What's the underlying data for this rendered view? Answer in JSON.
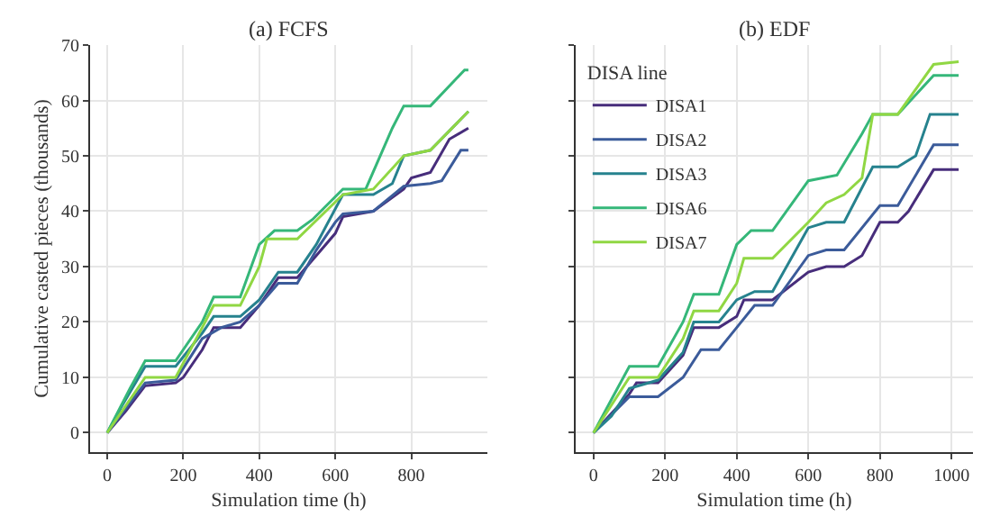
{
  "chart_data": [
    {
      "type": "line",
      "title": "(a) FCFS",
      "xlabel": "Simulation time (h)",
      "ylabel": "Cumulative casted pieces (thousands)",
      "xlim": [
        -45,
        1000
      ],
      "xticks": [
        0,
        200,
        400,
        600,
        800
      ],
      "ylim": [
        -3.5,
        70
      ],
      "yticks": [
        0,
        10,
        20,
        30,
        40,
        50,
        60,
        70
      ],
      "grid": true,
      "legend": false,
      "series": [
        {
          "color": "#472d7b",
          "x": [
            0,
            50,
            100,
            180,
            200,
            250,
            280,
            350,
            400,
            450,
            500,
            550,
            600,
            620,
            700,
            780,
            800,
            850,
            900,
            950
          ],
          "values": [
            0,
            4,
            8.5,
            9,
            10,
            15,
            19,
            19,
            23,
            28,
            28,
            32,
            36,
            39,
            40,
            44,
            46,
            47,
            53,
            55
          ]
        },
        {
          "color": "#3b5b9a",
          "x": [
            0,
            100,
            180,
            250,
            300,
            350,
            400,
            450,
            500,
            550,
            600,
            620,
            700,
            780,
            850,
            880,
            930,
            950
          ],
          "values": [
            0,
            9,
            9.5,
            17,
            19,
            20,
            23,
            27,
            27,
            33,
            38,
            39.5,
            40,
            44.5,
            45,
            45.5,
            51,
            51
          ]
        },
        {
          "color": "#26828e",
          "x": [
            0,
            40,
            100,
            180,
            250,
            280,
            350,
            400,
            450,
            500,
            550,
            620,
            700,
            750,
            780,
            850,
            950
          ],
          "values": [
            0,
            5,
            12,
            12,
            18,
            21,
            21,
            24,
            29,
            29,
            34,
            43,
            43,
            45,
            50,
            51,
            58
          ]
        },
        {
          "color": "#35b779",
          "x": [
            0,
            60,
            100,
            180,
            250,
            280,
            350,
            400,
            440,
            500,
            540,
            620,
            680,
            750,
            780,
            850,
            940,
            950
          ],
          "values": [
            0,
            8,
            13,
            13,
            20,
            24.5,
            24.5,
            34,
            36.5,
            36.5,
            38.5,
            44,
            44,
            55,
            59,
            59,
            65.5,
            65.5
          ]
        },
        {
          "color": "#90d743",
          "x": [
            0,
            100,
            180,
            250,
            280,
            350,
            400,
            420,
            500,
            620,
            700,
            780,
            850,
            950
          ],
          "values": [
            0,
            10,
            10,
            19,
            23,
            23,
            30,
            35,
            35,
            43,
            44,
            50,
            51,
            58
          ]
        }
      ]
    },
    {
      "type": "line",
      "title": "(b) EDF",
      "xlabel": "Simulation time (h)",
      "xlim": [
        -50,
        1060
      ],
      "xticks": [
        0,
        200,
        400,
        600,
        800,
        1000
      ],
      "ylim": [
        -3.5,
        70
      ],
      "yticks": [
        0,
        10,
        20,
        30,
        40,
        50,
        60,
        70
      ],
      "grid": true,
      "legend": "top left",
      "legend_title": "DISA line",
      "tick_labels": "x",
      "series": [
        {
          "name": "DISA1",
          "color": "#472d7b",
          "x": [
            0,
            100,
            120,
            180,
            250,
            280,
            350,
            400,
            420,
            500,
            600,
            650,
            700,
            750,
            800,
            850,
            880,
            950,
            1020
          ],
          "values": [
            0,
            7,
            9,
            9,
            14,
            19,
            19,
            21,
            24,
            24,
            29,
            30,
            30,
            32,
            38,
            38,
            40,
            47.5,
            47.5
          ]
        },
        {
          "name": "DISA2",
          "color": "#3b5b9a",
          "x": [
            0,
            100,
            180,
            250,
            300,
            350,
            400,
            450,
            500,
            600,
            650,
            700,
            800,
            850,
            950,
            1020
          ],
          "values": [
            0,
            6.5,
            6.5,
            10,
            15,
            15,
            19,
            23,
            23,
            32,
            33,
            33,
            41,
            41,
            52,
            52
          ]
        },
        {
          "name": "DISA3",
          "color": "#26828e",
          "x": [
            0,
            50,
            100,
            180,
            250,
            280,
            350,
            400,
            450,
            500,
            600,
            650,
            700,
            780,
            850,
            900,
            940,
            1020
          ],
          "values": [
            0,
            3,
            8,
            9.5,
            14.5,
            20,
            20,
            24,
            25.5,
            25.5,
            37,
            38,
            38,
            48,
            48,
            50,
            57.5,
            57.5
          ]
        },
        {
          "name": "DISA6",
          "color": "#35b779",
          "x": [
            0,
            50,
            100,
            180,
            250,
            280,
            350,
            400,
            440,
            500,
            600,
            680,
            750,
            780,
            850,
            950,
            1020
          ],
          "values": [
            0,
            6,
            12,
            12,
            20,
            25,
            25,
            34,
            36.5,
            36.5,
            45.5,
            46.5,
            54,
            57.5,
            57.5,
            64.5,
            64.5
          ]
        },
        {
          "name": "DISA7",
          "color": "#90d743",
          "x": [
            0,
            100,
            180,
            250,
            280,
            350,
            400,
            420,
            500,
            600,
            650,
            700,
            750,
            780,
            850,
            900,
            950,
            1020
          ],
          "values": [
            0,
            10,
            10,
            17,
            22,
            22,
            27,
            31.5,
            31.5,
            38,
            41.5,
            43,
            46,
            57.5,
            57.5,
            62,
            66.5,
            67
          ]
        }
      ]
    }
  ]
}
